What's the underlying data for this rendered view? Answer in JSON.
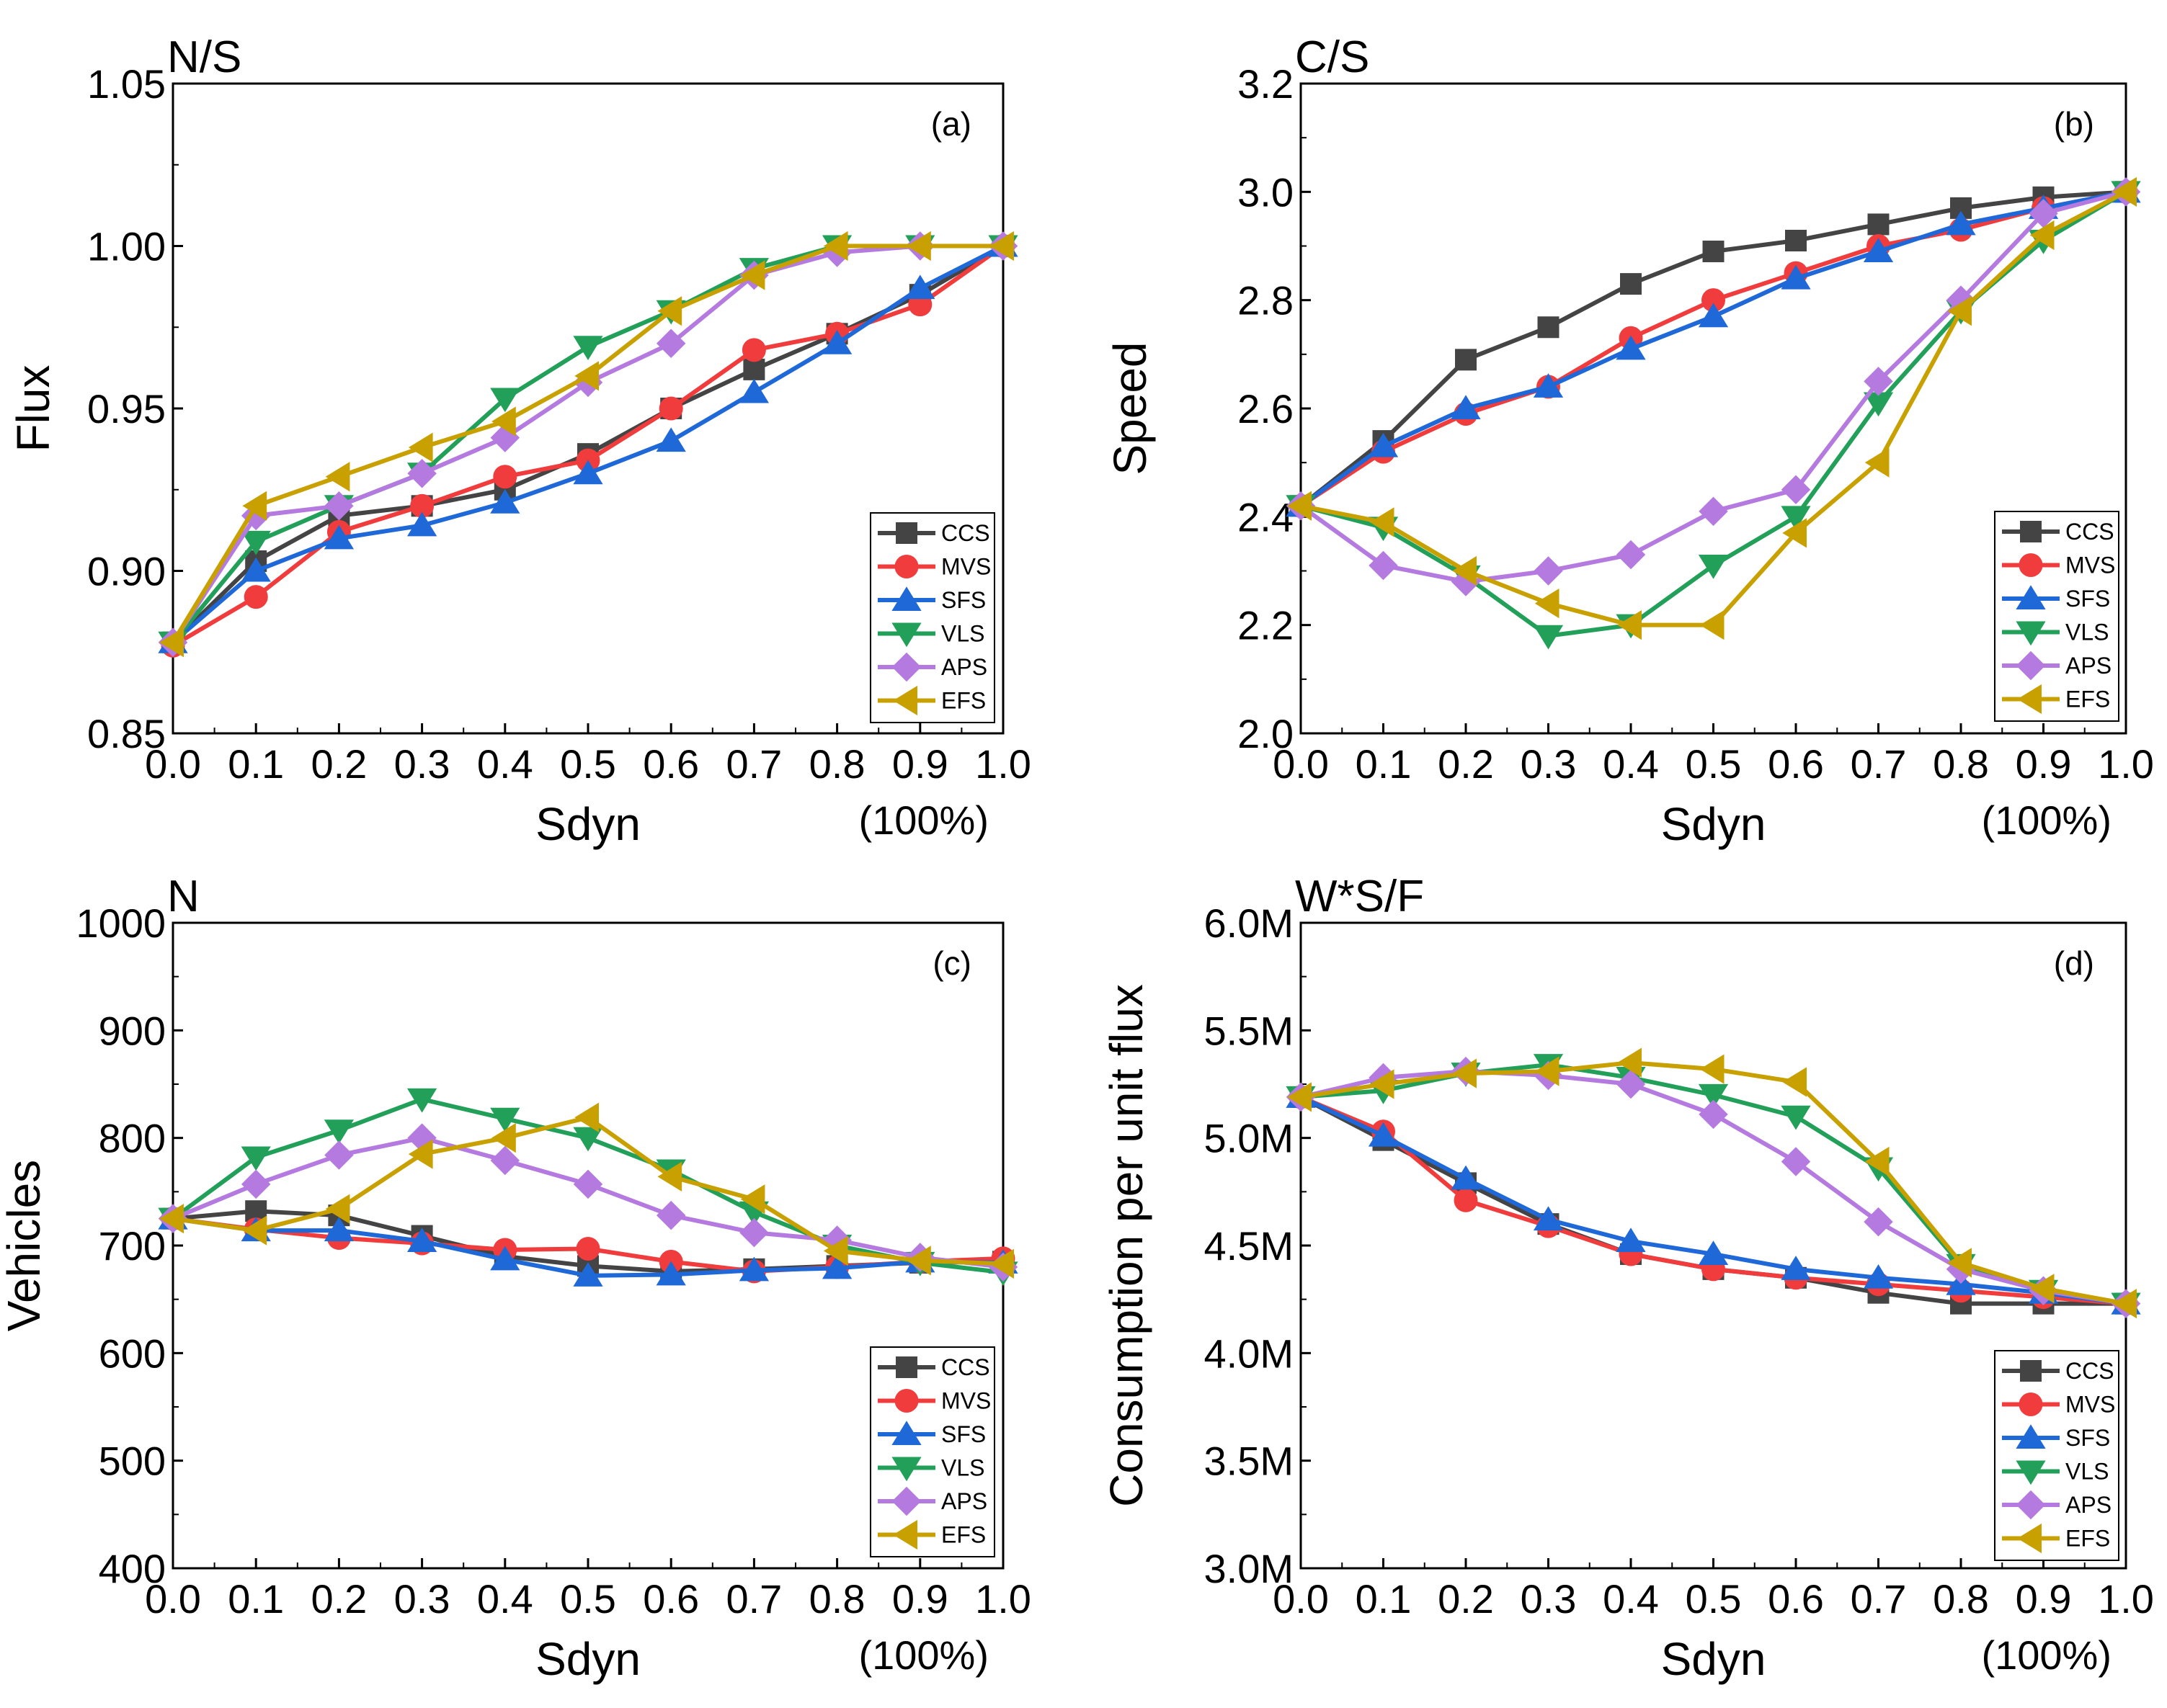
{
  "colors": {
    "CCS": "#444444",
    "MVS": "#f03c3c",
    "SFS": "#1f68d8",
    "VLS": "#22a05a",
    "APS": "#b47ae0",
    "EFS": "#c8a000"
  },
  "chart_data": [
    {
      "type": "line",
      "panel_label": "(a)",
      "title": "N/S",
      "xlabel": "Sdyn",
      "xunit": "(100%)",
      "ylabel": "Flux",
      "xlim": [
        0,
        1
      ],
      "ylim": [
        0.85,
        1.05
      ],
      "x": [
        0.0,
        0.1,
        0.2,
        0.3,
        0.4,
        0.5,
        0.6,
        0.7,
        0.8,
        0.9,
        1.0
      ],
      "xticks": [
        "0.0",
        "0.1",
        "0.2",
        "0.3",
        "0.4",
        "0.5",
        "0.6",
        "0.7",
        "0.8",
        "0.9",
        "1.0"
      ],
      "yticks": [
        {
          "v": 0.85,
          "label": "0.85"
        },
        {
          "v": 0.9,
          "label": "0.90"
        },
        {
          "v": 0.95,
          "label": "0.95"
        },
        {
          "v": 1.0,
          "label": "1.00"
        },
        {
          "v": 1.05,
          "label": "1.05"
        }
      ],
      "series": [
        {
          "name": "CCS",
          "marker": "square",
          "values": [
            0.878,
            0.903,
            0.917,
            0.92,
            0.925,
            0.936,
            0.95,
            0.962,
            0.973,
            0.985,
            1.0
          ]
        },
        {
          "name": "MVS",
          "marker": "circle",
          "values": [
            0.877,
            0.892,
            0.912,
            0.92,
            0.929,
            0.934,
            0.95,
            0.968,
            0.973,
            0.982,
            1.0
          ]
        },
        {
          "name": "SFS",
          "marker": "triangle-up",
          "values": [
            0.878,
            0.9,
            0.91,
            0.914,
            0.921,
            0.93,
            0.94,
            0.955,
            0.97,
            0.987,
            1.0
          ]
        },
        {
          "name": "VLS",
          "marker": "triangle-down",
          "values": [
            0.878,
            0.909,
            0.92,
            0.93,
            0.953,
            0.969,
            0.98,
            0.993,
            1.0,
            1.0,
            1.0
          ]
        },
        {
          "name": "APS",
          "marker": "diamond",
          "values": [
            0.878,
            0.917,
            0.92,
            0.93,
            0.941,
            0.958,
            0.97,
            0.991,
            0.998,
            1.0,
            1.0
          ]
        },
        {
          "name": "EFS",
          "marker": "triangle-left",
          "values": [
            0.878,
            0.92,
            0.929,
            0.938,
            0.946,
            0.96,
            0.98,
            0.991,
            1.0,
            1.0,
            1.0
          ]
        }
      ]
    },
    {
      "type": "line",
      "panel_label": "(b)",
      "title": "C/S",
      "xlabel": "Sdyn",
      "xunit": "(100%)",
      "ylabel": "Speed",
      "xlim": [
        0,
        1
      ],
      "ylim": [
        2.0,
        3.2
      ],
      "x": [
        0.0,
        0.1,
        0.2,
        0.3,
        0.4,
        0.5,
        0.6,
        0.7,
        0.8,
        0.9,
        1.0
      ],
      "xticks": [
        "0.0",
        "0.1",
        "0.2",
        "0.3",
        "0.4",
        "0.5",
        "0.6",
        "0.7",
        "0.8",
        "0.9",
        "1.0"
      ],
      "yticks": [
        {
          "v": 2.0,
          "label": "2.0"
        },
        {
          "v": 2.2,
          "label": "2.2"
        },
        {
          "v": 2.4,
          "label": "2.4"
        },
        {
          "v": 2.6,
          "label": "2.6"
        },
        {
          "v": 2.8,
          "label": "2.8"
        },
        {
          "v": 3.0,
          "label": "3.0"
        },
        {
          "v": 3.2,
          "label": "3.2"
        }
      ],
      "series": [
        {
          "name": "CCS",
          "marker": "square",
          "values": [
            2.42,
            2.54,
            2.69,
            2.75,
            2.83,
            2.89,
            2.91,
            2.94,
            2.97,
            2.99,
            3.0
          ]
        },
        {
          "name": "MVS",
          "marker": "circle",
          "values": [
            2.42,
            2.52,
            2.59,
            2.64,
            2.73,
            2.8,
            2.85,
            2.9,
            2.93,
            2.97,
            3.0
          ]
        },
        {
          "name": "SFS",
          "marker": "triangle-up",
          "values": [
            2.42,
            2.53,
            2.6,
            2.64,
            2.71,
            2.77,
            2.84,
            2.89,
            2.94,
            2.97,
            3.0
          ]
        },
        {
          "name": "VLS",
          "marker": "triangle-down",
          "values": [
            2.42,
            2.38,
            2.29,
            2.18,
            2.2,
            2.31,
            2.4,
            2.61,
            2.78,
            2.91,
            3.0
          ]
        },
        {
          "name": "APS",
          "marker": "diamond",
          "values": [
            2.42,
            2.31,
            2.28,
            2.3,
            2.33,
            2.41,
            2.45,
            2.65,
            2.8,
            2.96,
            3.0
          ]
        },
        {
          "name": "EFS",
          "marker": "triangle-left",
          "values": [
            2.42,
            2.39,
            2.3,
            2.24,
            2.2,
            2.2,
            2.37,
            2.5,
            2.78,
            2.92,
            3.0
          ]
        }
      ]
    },
    {
      "type": "line",
      "panel_label": "(c)",
      "title": "N",
      "xlabel": "Sdyn",
      "xunit": "(100%)",
      "ylabel": "Vehicles",
      "xlim": [
        0,
        1
      ],
      "ylim": [
        400,
        1000
      ],
      "x": [
        0.0,
        0.1,
        0.2,
        0.3,
        0.4,
        0.5,
        0.6,
        0.7,
        0.8,
        0.9,
        1.0
      ],
      "xticks": [
        "0.0",
        "0.1",
        "0.2",
        "0.3",
        "0.4",
        "0.5",
        "0.6",
        "0.7",
        "0.8",
        "0.9",
        "1.0"
      ],
      "yticks": [
        {
          "v": 400,
          "label": "400"
        },
        {
          "v": 500,
          "label": "500"
        },
        {
          "v": 600,
          "label": "600"
        },
        {
          "v": 700,
          "label": "700"
        },
        {
          "v": 800,
          "label": "800"
        },
        {
          "v": 900,
          "label": "900"
        },
        {
          "v": 1000,
          "label": "1000"
        }
      ],
      "series": [
        {
          "name": "CCS",
          "marker": "square",
          "values": [
            725,
            732,
            728,
            709,
            690,
            681,
            676,
            678,
            681,
            684,
            685
          ]
        },
        {
          "name": "MVS",
          "marker": "circle",
          "values": [
            725,
            715,
            707,
            702,
            696,
            697,
            685,
            676,
            680,
            685,
            688
          ]
        },
        {
          "name": "SFS",
          "marker": "triangle-up",
          "values": [
            725,
            714,
            714,
            704,
            687,
            672,
            673,
            677,
            679,
            685,
            684
          ]
        },
        {
          "name": "VLS",
          "marker": "triangle-down",
          "values": [
            725,
            782,
            807,
            836,
            818,
            800,
            770,
            731,
            700,
            684,
            675
          ]
        },
        {
          "name": "APS",
          "marker": "diamond",
          "values": [
            725,
            757,
            784,
            800,
            779,
            757,
            728,
            712,
            705,
            689,
            680
          ]
        },
        {
          "name": "EFS",
          "marker": "triangle-left",
          "values": [
            725,
            714,
            734,
            785,
            800,
            819,
            764,
            743,
            695,
            686,
            683
          ]
        }
      ]
    },
    {
      "type": "line",
      "panel_label": "(d)",
      "title": "W*S/F",
      "xlabel": "Sdyn",
      "xunit": "(100%)",
      "ylabel": "Consumption per unit flux",
      "xlim": [
        0,
        1
      ],
      "ylim": [
        3.0,
        6.0
      ],
      "x": [
        0.0,
        0.1,
        0.2,
        0.3,
        0.4,
        0.5,
        0.6,
        0.7,
        0.8,
        0.9,
        1.0
      ],
      "xticks": [
        "0.0",
        "0.1",
        "0.2",
        "0.3",
        "0.4",
        "0.5",
        "0.6",
        "0.7",
        "0.8",
        "0.9",
        "1.0"
      ],
      "yticks": [
        {
          "v": 3.0,
          "label": "3.0M"
        },
        {
          "v": 3.5,
          "label": "3.5M"
        },
        {
          "v": 4.0,
          "label": "4.0M"
        },
        {
          "v": 4.5,
          "label": "4.5M"
        },
        {
          "v": 5.0,
          "label": "5.0M"
        },
        {
          "v": 5.5,
          "label": "5.5M"
        },
        {
          "v": 6.0,
          "label": "6.0M"
        }
      ],
      "series": [
        {
          "name": "CCS",
          "marker": "square",
          "values": [
            5.19,
            4.99,
            4.79,
            4.6,
            4.46,
            4.39,
            4.35,
            4.28,
            4.23,
            4.23,
            4.23
          ]
        },
        {
          "name": "MVS",
          "marker": "circle",
          "values": [
            5.19,
            5.03,
            4.71,
            4.59,
            4.46,
            4.39,
            4.35,
            4.32,
            4.29,
            4.26,
            4.23
          ]
        },
        {
          "name": "SFS",
          "marker": "triangle-up",
          "values": [
            5.19,
            5.01,
            4.81,
            4.62,
            4.52,
            4.46,
            4.39,
            4.35,
            4.32,
            4.28,
            4.23
          ]
        },
        {
          "name": "VLS",
          "marker": "triangle-down",
          "values": [
            5.19,
            5.22,
            5.3,
            5.34,
            5.28,
            5.2,
            5.1,
            4.86,
            4.41,
            4.29,
            4.23
          ]
        },
        {
          "name": "APS",
          "marker": "diamond",
          "values": [
            5.19,
            5.28,
            5.31,
            5.29,
            5.25,
            5.11,
            4.89,
            4.61,
            4.39,
            4.29,
            4.23
          ]
        },
        {
          "name": "EFS",
          "marker": "triangle-left",
          "values": [
            5.19,
            5.25,
            5.3,
            5.31,
            5.35,
            5.32,
            5.26,
            4.89,
            4.42,
            4.3,
            4.23
          ]
        }
      ]
    }
  ]
}
